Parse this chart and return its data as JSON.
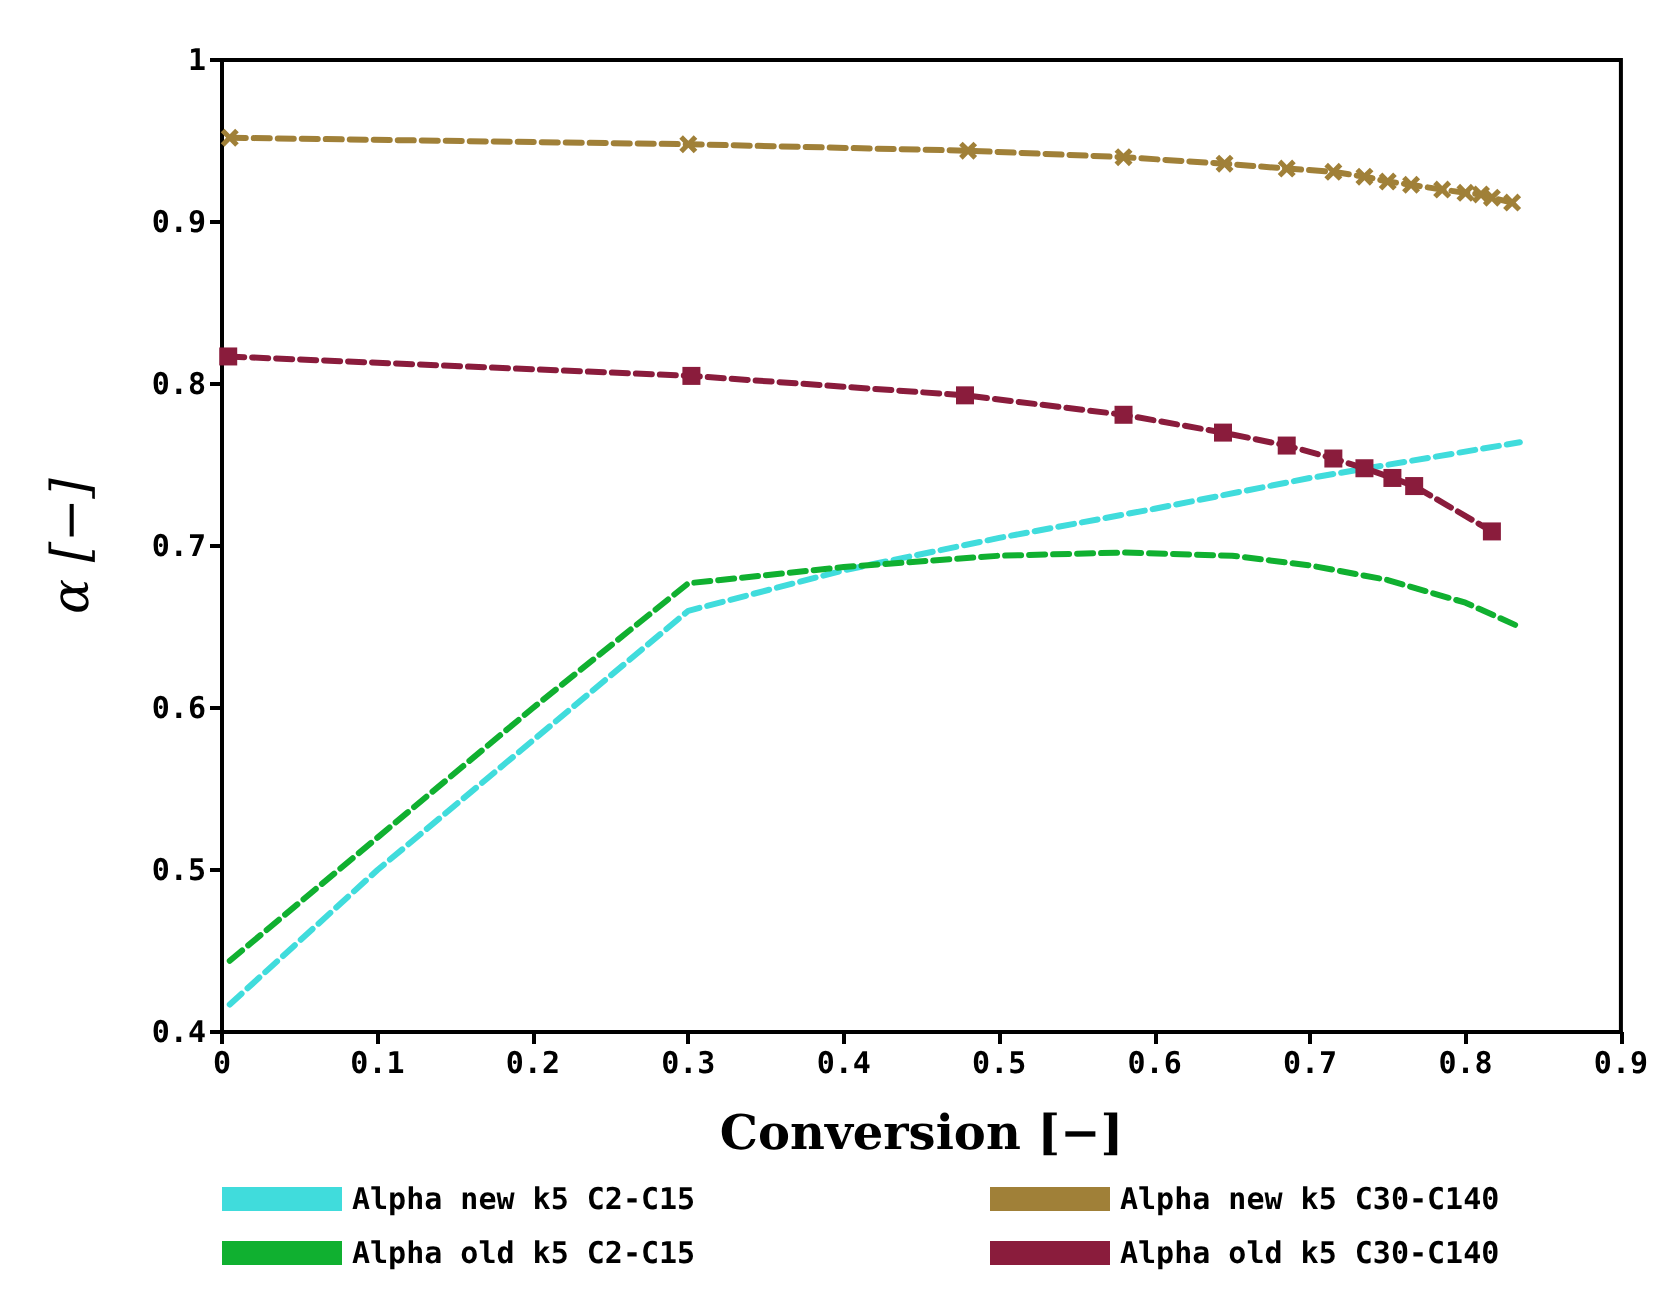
{
  "chart_data": {
    "type": "line",
    "xlabel": "Conversion [−]",
    "ylabel": "α [−]",
    "xlim": [
      0,
      0.9
    ],
    "xticks": [
      0,
      0.1,
      0.2,
      0.3,
      0.4,
      0.5,
      0.6,
      0.7,
      0.8,
      0.9
    ],
    "ylim": [
      0.4,
      1
    ],
    "yticks": [
      0.4,
      0.5,
      0.6,
      0.7,
      0.8,
      0.9,
      1
    ],
    "grid": false,
    "legend": "bottom",
    "series": [
      {
        "name": "Alpha new k5 C2-C15",
        "color": "#40dcdc",
        "marker": "none",
        "line_style": "dashed",
        "x": [
          0.005,
          0.1,
          0.2,
          0.3,
          0.4,
          0.5,
          0.6,
          0.7,
          0.835
        ],
        "values": [
          0.417,
          0.5,
          0.58,
          0.66,
          0.685,
          0.705,
          0.723,
          0.742,
          0.764
        ]
      },
      {
        "name": "Alpha old k5 C2-C15",
        "color": "#10b030",
        "marker": "none",
        "line_style": "dashed",
        "x": [
          0.005,
          0.1,
          0.2,
          0.3,
          0.4,
          0.5,
          0.58,
          0.65,
          0.7,
          0.75,
          0.8,
          0.835
        ],
        "values": [
          0.444,
          0.52,
          0.6,
          0.677,
          0.687,
          0.694,
          0.696,
          0.694,
          0.688,
          0.679,
          0.665,
          0.65
        ]
      },
      {
        "name": "Alpha new k5 C30-C140",
        "color": "#a08038",
        "marker": "cross",
        "line_style": "dashed",
        "x": [
          0.005,
          0.3,
          0.48,
          0.58,
          0.645,
          0.685,
          0.715,
          0.735,
          0.75,
          0.765,
          0.785,
          0.8,
          0.81,
          0.817,
          0.83
        ],
        "values": [
          0.952,
          0.948,
          0.944,
          0.94,
          0.936,
          0.933,
          0.931,
          0.928,
          0.925,
          0.923,
          0.92,
          0.918,
          0.917,
          0.915,
          0.912
        ]
      },
      {
        "name": "Alpha old k5 C30-C140",
        "color": "#8a1c3c",
        "marker": "square",
        "line_style": "dashed",
        "x": [
          0.004,
          0.302,
          0.478,
          0.58,
          0.644,
          0.685,
          0.715,
          0.735,
          0.753,
          0.767,
          0.817
        ],
        "values": [
          0.817,
          0.805,
          0.793,
          0.781,
          0.77,
          0.762,
          0.754,
          0.748,
          0.742,
          0.737,
          0.709
        ]
      }
    ]
  }
}
